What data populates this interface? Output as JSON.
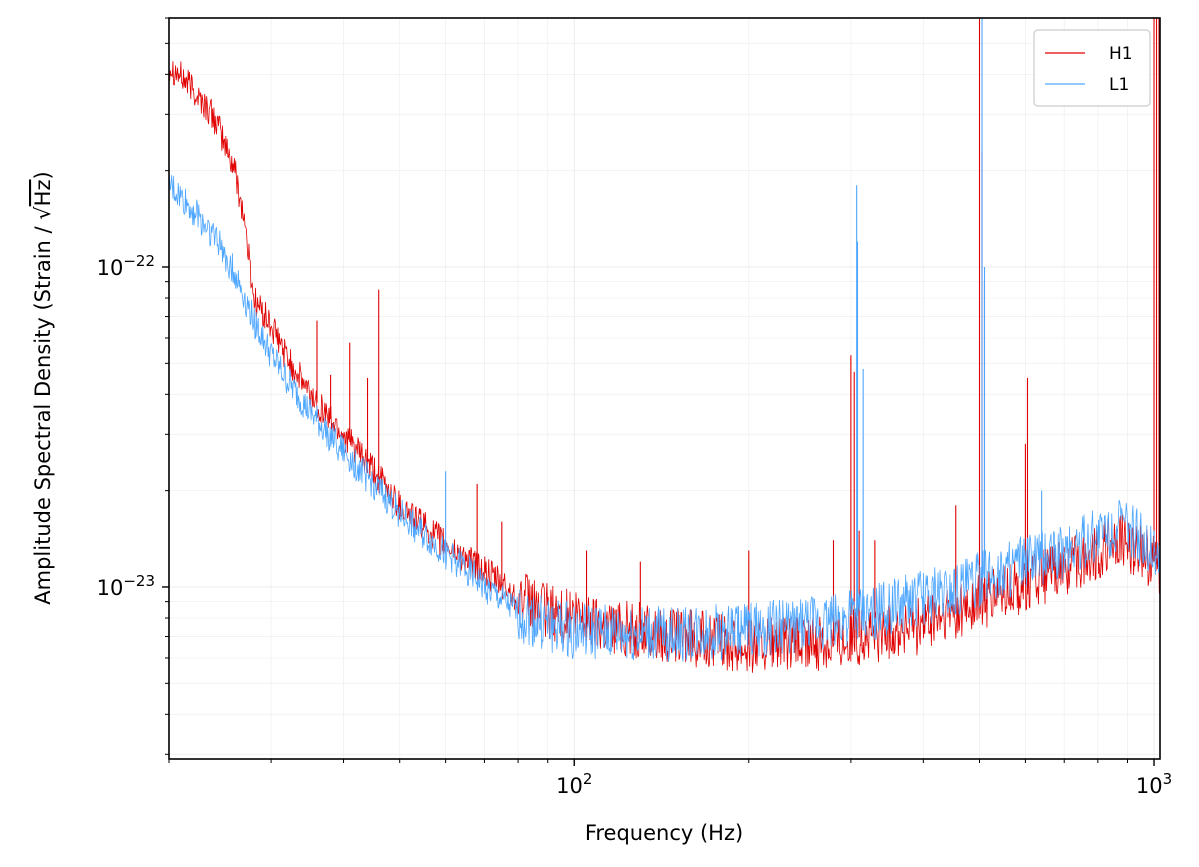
{
  "chart_data": {
    "type": "line",
    "xlabel": "Frequency (Hz)",
    "ylabel_prefix": "Amplitude Spectral Density (Strain / ",
    "ylabel_radical": "√",
    "ylabel_unit": "Hz",
    "ylabel_suffix": ")",
    "x_scale": "log",
    "y_scale": "log",
    "xlim": [
      20,
      1024
    ],
    "ylim": [
      2.9e-24,
      6e-22
    ],
    "x_ticks": [
      {
        "value": 100,
        "base": "10",
        "exp": "2"
      },
      {
        "value": 1000,
        "base": "10",
        "exp": "3"
      }
    ],
    "y_ticks": [
      {
        "value": 1e-23,
        "base": "10",
        "exp": "−23"
      },
      {
        "value": 1e-22,
        "base": "10",
        "exp": "−22"
      }
    ],
    "grid": true,
    "legend_position": "top-right",
    "series": [
      {
        "name": "H1",
        "color": "#e00000",
        "baseline": [
          [
            20,
            4.3e-22
          ],
          [
            22,
            3.6e-22
          ],
          [
            24,
            2.9e-22
          ],
          [
            26,
            2e-22
          ],
          [
            27,
            1.4e-22
          ],
          [
            28,
            8e-23
          ],
          [
            30,
            6.5e-23
          ],
          [
            32,
            5.2e-23
          ],
          [
            35,
            4e-23
          ],
          [
            40,
            3e-23
          ],
          [
            45,
            2.3e-23
          ],
          [
            50,
            1.8e-23
          ],
          [
            55,
            1.55e-23
          ],
          [
            60,
            1.35e-23
          ],
          [
            70,
            1.12e-23
          ],
          [
            80,
            9.2e-24
          ],
          [
            90,
            8.4e-24
          ],
          [
            100,
            8e-24
          ],
          [
            120,
            7.5e-24
          ],
          [
            150,
            7e-24
          ],
          [
            200,
            6.6e-24
          ],
          [
            250,
            6.6e-24
          ],
          [
            300,
            6.9e-24
          ],
          [
            350,
            7.2e-24
          ],
          [
            400,
            7.6e-24
          ],
          [
            450,
            8.2e-24
          ],
          [
            500,
            8.9e-24
          ],
          [
            600,
            1.02e-23
          ],
          [
            700,
            1.15e-23
          ],
          [
            800,
            1.28e-23
          ],
          [
            870,
            1.4e-23
          ],
          [
            930,
            1.32e-23
          ],
          [
            1000,
            1.2e-23
          ],
          [
            1024,
            1.15e-23
          ]
        ],
        "peaks": [
          [
            36,
            6.8e-23
          ],
          [
            38,
            4.6e-23
          ],
          [
            41,
            5.8e-23
          ],
          [
            44,
            4.5e-23
          ],
          [
            46,
            8.5e-23
          ],
          [
            50,
            1.9e-23
          ],
          [
            55,
            1.7e-23
          ],
          [
            68,
            2.1e-23
          ],
          [
            75,
            1.6e-23
          ],
          [
            105,
            1.3e-23
          ],
          [
            130,
            1.2e-23
          ],
          [
            200,
            1.3e-23
          ],
          [
            280,
            1.4e-23
          ],
          [
            300,
            5.3e-23
          ],
          [
            304,
            4.7e-23
          ],
          [
            310,
            1.5e-23
          ],
          [
            330,
            1.4e-23
          ],
          [
            455,
            1.8e-23
          ],
          [
            500,
            6e-22
          ],
          [
            505,
            2.3e-22
          ],
          [
            510,
            9e-23
          ],
          [
            600,
            2.8e-23
          ],
          [
            605,
            4.5e-23
          ],
          [
            1000,
            6e-22
          ],
          [
            1010,
            6e-22
          ],
          [
            1020,
            6e-22
          ]
        ]
      },
      {
        "name": "L1",
        "color": "#4da6ff",
        "baseline": [
          [
            20,
            1.8e-22
          ],
          [
            22,
            1.5e-22
          ],
          [
            24,
            1.25e-22
          ],
          [
            26,
            9.5e-23
          ],
          [
            28,
            6.8e-23
          ],
          [
            30,
            5.3e-23
          ],
          [
            32,
            4.4e-23
          ],
          [
            35,
            3.5e-23
          ],
          [
            40,
            2.65e-23
          ],
          [
            45,
            2.1e-23
          ],
          [
            50,
            1.7e-23
          ],
          [
            55,
            1.45e-23
          ],
          [
            60,
            1.27e-23
          ],
          [
            65,
            1.15e-23
          ],
          [
            70,
            1e-23
          ],
          [
            80,
            8.3e-24
          ],
          [
            90,
            7.6e-24
          ],
          [
            100,
            7.3e-24
          ],
          [
            120,
            7.1e-24
          ],
          [
            150,
            7.1e-24
          ],
          [
            200,
            7.3e-24
          ],
          [
            250,
            7.6e-24
          ],
          [
            300,
            8e-24
          ],
          [
            350,
            8.6e-24
          ],
          [
            400,
            9.2e-24
          ],
          [
            450,
            9.9e-24
          ],
          [
            500,
            1.06e-23
          ],
          [
            600,
            1.18e-23
          ],
          [
            700,
            1.3e-23
          ],
          [
            800,
            1.44e-23
          ],
          [
            870,
            1.55e-23
          ],
          [
            930,
            1.45e-23
          ],
          [
            1000,
            1.3e-23
          ],
          [
            1024,
            1.2e-23
          ]
        ],
        "peaks": [
          [
            60,
            2.3e-23
          ],
          [
            307,
            1.8e-22
          ],
          [
            308,
            1.2e-22
          ],
          [
            315,
            4.8e-23
          ],
          [
            505,
            6e-22
          ],
          [
            510,
            1e-22
          ],
          [
            640,
            2e-23
          ],
          [
            1000,
            1.5e-23
          ]
        ]
      }
    ]
  }
}
